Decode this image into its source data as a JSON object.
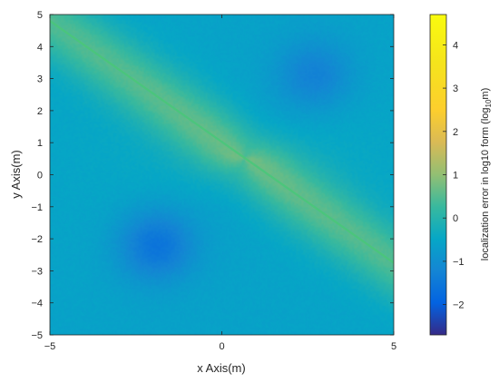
{
  "chart_data": {
    "type": "heatmap",
    "xlabel": "x Axis(m)",
    "ylabel": "y Axis(m)",
    "xlim": [
      -5,
      5
    ],
    "ylim": [
      -5,
      5
    ],
    "xticks": [
      "−5",
      "0",
      "5"
    ],
    "yticks": [
      "5",
      "4",
      "3",
      "2",
      "1",
      "0",
      "−1",
      "−2",
      "−3",
      "−4",
      "−5"
    ],
    "colorbar": {
      "label_main": "localization error in log10 form (log",
      "label_sub": "10",
      "label_end": "m)",
      "range": [
        -2.7,
        4.7
      ],
      "ticks": [
        "4",
        "3",
        "2",
        "1",
        "0",
        "−1",
        "−2"
      ],
      "colormap": "parula"
    },
    "features": {
      "ridge_line": {
        "from": [
          -5,
          4.8
        ],
        "to": [
          5,
          -2.75
        ],
        "value": 1.0
      },
      "background_value": -0.6,
      "minima": [
        {
          "x": -1.9,
          "y": -2.2,
          "value": -1.6
        },
        {
          "x": 2.7,
          "y": 3.1,
          "value": -1.3
        }
      ],
      "center": {
        "x": 0.65,
        "y": 0.5
      }
    },
    "grid": false
  }
}
